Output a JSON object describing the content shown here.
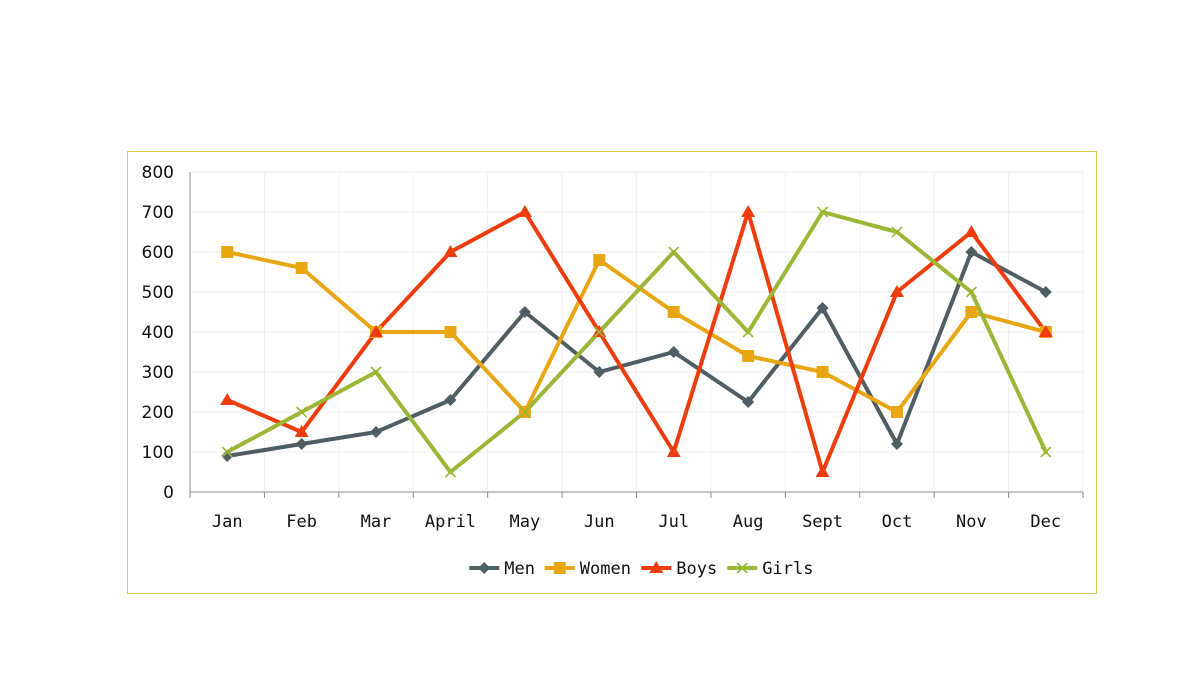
{
  "chart_data": {
    "type": "line",
    "categories": [
      "Jan",
      "Feb",
      "Mar",
      "April",
      "May",
      "Jun",
      "Jul",
      "Aug",
      "Sept",
      "Oct",
      "Nov",
      "Dec"
    ],
    "ylim": [
      0,
      800
    ],
    "yticks": [
      0,
      100,
      200,
      300,
      400,
      500,
      600,
      700,
      800
    ],
    "grid": true,
    "legend": "bottom",
    "series": [
      {
        "name": "Men",
        "color": "#4f5e62",
        "marker": "diamond",
        "values": [
          90,
          120,
          150,
          230,
          450,
          300,
          350,
          225,
          460,
          120,
          600,
          500
        ]
      },
      {
        "name": "Women",
        "color": "#e8a712",
        "marker": "square",
        "values": [
          600,
          560,
          400,
          400,
          200,
          580,
          450,
          340,
          300,
          200,
          450,
          400
        ]
      },
      {
        "name": "Boys",
        "color": "#ee3d0c",
        "marker": "triangle",
        "values": [
          230,
          150,
          400,
          600,
          700,
          400,
          100,
          700,
          50,
          500,
          650,
          400
        ]
      },
      {
        "name": "Girls",
        "color": "#9bb735",
        "marker": "x",
        "values": [
          100,
          200,
          300,
          50,
          200,
          400,
          600,
          400,
          700,
          650,
          500,
          100
        ]
      }
    ]
  }
}
